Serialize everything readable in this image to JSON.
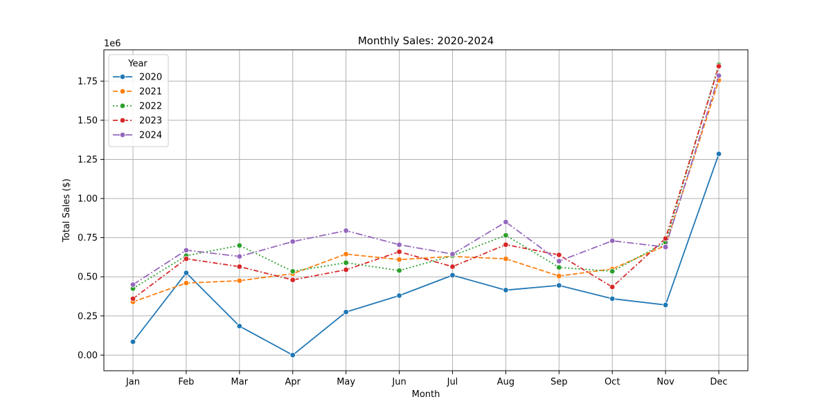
{
  "chart_data": {
    "type": "line",
    "title": "Monthly Sales: 2020-2024",
    "xlabel": "Month",
    "ylabel": "Total Sales ($)",
    "y_offset_label": "1e6",
    "y_scale": 1000000,
    "categories": [
      "Jan",
      "Feb",
      "Mar",
      "Apr",
      "May",
      "Jun",
      "Jul",
      "Aug",
      "Sep",
      "Oct",
      "Nov",
      "Dec"
    ],
    "ylim": [
      -100000,
      1950000
    ],
    "yticks": [
      0,
      250000,
      500000,
      750000,
      1000000,
      1250000,
      1500000,
      1750000
    ],
    "ytick_labels": [
      "0.00",
      "0.25",
      "0.50",
      "0.75",
      "1.00",
      "1.25",
      "1.50",
      "1.75"
    ],
    "grid": true,
    "legend": {
      "title": "Year",
      "placement": "top-left"
    },
    "series": [
      {
        "name": "2020",
        "color": "#1f77b4",
        "dash": "solid",
        "values": [
          85000,
          525000,
          185000,
          0,
          275000,
          380000,
          510000,
          415000,
          445000,
          360000,
          320000,
          1285000
        ]
      },
      {
        "name": "2021",
        "color": "#ff7f0e",
        "dash": "dashed",
        "values": [
          340000,
          460000,
          475000,
          520000,
          645000,
          610000,
          630000,
          615000,
          505000,
          550000,
          700000,
          1755000
        ]
      },
      {
        "name": "2022",
        "color": "#2ca02c",
        "dash": "dotted",
        "values": [
          425000,
          635000,
          700000,
          535000,
          590000,
          540000,
          635000,
          765000,
          560000,
          535000,
          720000,
          1855000
        ]
      },
      {
        "name": "2023",
        "color": "#d62728",
        "dash": "dashdot",
        "values": [
          360000,
          615000,
          565000,
          480000,
          545000,
          660000,
          565000,
          705000,
          640000,
          435000,
          745000,
          1845000
        ]
      },
      {
        "name": "2024",
        "color": "#9467bd",
        "dash": "longdashdot",
        "values": [
          450000,
          670000,
          630000,
          725000,
          795000,
          705000,
          645000,
          850000,
          600000,
          730000,
          690000,
          1785000
        ]
      }
    ]
  }
}
